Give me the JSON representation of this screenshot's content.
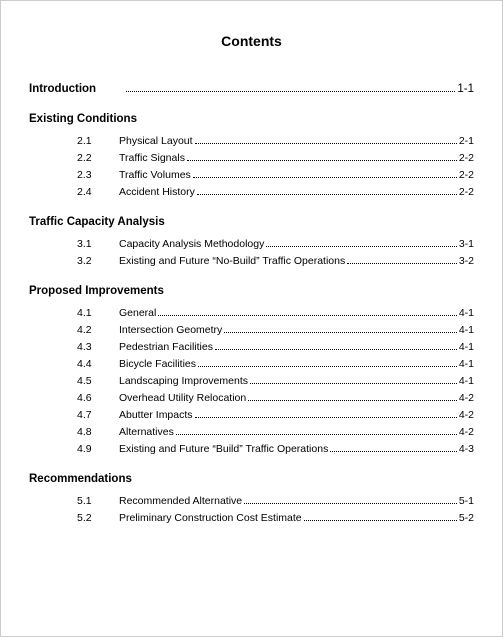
{
  "title": "Contents",
  "sections": [
    {
      "header": "Introduction",
      "inline": true,
      "page": "1-1"
    },
    {
      "header": "Existing Conditions",
      "entries": [
        {
          "num": "2.1",
          "title": "Physical Layout",
          "page": "2-1"
        },
        {
          "num": "2.2",
          "title": "Traffic Signals",
          "page": "2-2"
        },
        {
          "num": "2.3",
          "title": "Traffic Volumes",
          "page": "2-2"
        },
        {
          "num": "2.4",
          "title": "Accident History",
          "page": "2-2"
        }
      ]
    },
    {
      "header": "Traffic Capacity Analysis",
      "entries": [
        {
          "num": "3.1",
          "title": "Capacity Analysis Methodology",
          "page": "3-1"
        },
        {
          "num": "3.2",
          "title": "Existing and Future “No-Build” Traffic Operations",
          "page": "3-2"
        }
      ]
    },
    {
      "header": "Proposed Improvements",
      "entries": [
        {
          "num": "4.1",
          "title": "General",
          "page": "4-1"
        },
        {
          "num": "4.2",
          "title": "Intersection Geometry",
          "page": "4-1"
        },
        {
          "num": "4.3",
          "title": "Pedestrian Facilities",
          "page": "4-1"
        },
        {
          "num": "4.4",
          "title": "Bicycle Facilities",
          "page": "4-1"
        },
        {
          "num": "4.5",
          "title": "Landscaping Improvements",
          "page": "4-1"
        },
        {
          "num": "4.6",
          "title": "Overhead Utility Relocation",
          "page": "4-2"
        },
        {
          "num": "4.7",
          "title": "Abutter Impacts",
          "page": "4-2"
        },
        {
          "num": "4.8",
          "title": "Alternatives",
          "page": "4-2"
        },
        {
          "num": "4.9",
          "title": "Existing and Future “Build” Traffic Operations",
          "page": "4-3"
        }
      ]
    },
    {
      "header": "Recommendations",
      "entries": [
        {
          "num": "5.1",
          "title": "Recommended Alternative",
          "page": "5-1"
        },
        {
          "num": "5.2",
          "title": "Preliminary Construction Cost Estimate",
          "page": "5-2"
        }
      ]
    }
  ]
}
